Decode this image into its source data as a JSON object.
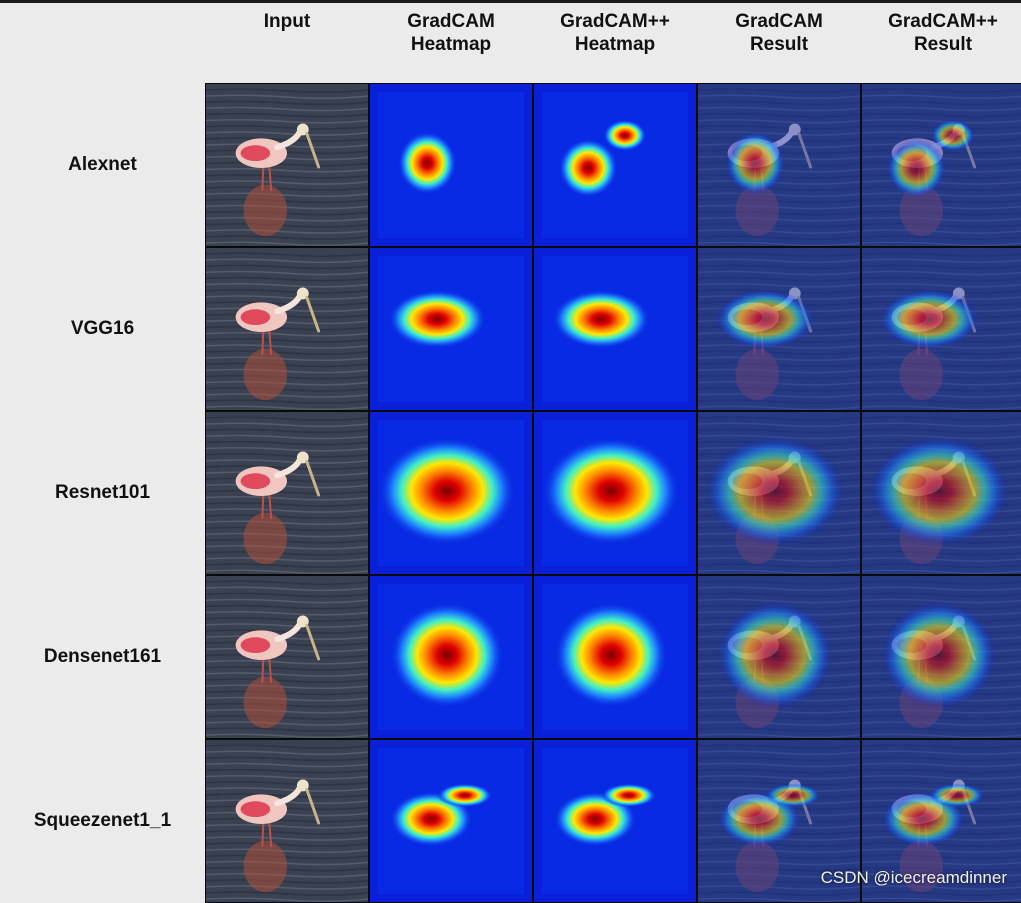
{
  "columns": [
    "Input",
    "GradCAM\nHeatmap",
    "GradCAM++\nHeatmap",
    "GradCAM\nResult",
    "GradCAM++\nResult"
  ],
  "rows": [
    {
      "model": "Alexnet",
      "heat": "small",
      "heatpp": "small-upper"
    },
    {
      "model": "VGG16",
      "heat": "elongated",
      "heatpp": "elongated"
    },
    {
      "model": "Resnet101",
      "heat": "large",
      "heatpp": "large"
    },
    {
      "model": "Densenet161",
      "heat": "medium",
      "heatpp": "medium"
    },
    {
      "model": "Squeezenet1_1",
      "heat": "small-low",
      "heatpp": "small-low"
    }
  ],
  "watermark": "CSDN @icecreamdinner",
  "colors": {
    "water": "#3a4150",
    "heat_bg": "#0a1fd8",
    "heat_hot": "#c00000"
  }
}
